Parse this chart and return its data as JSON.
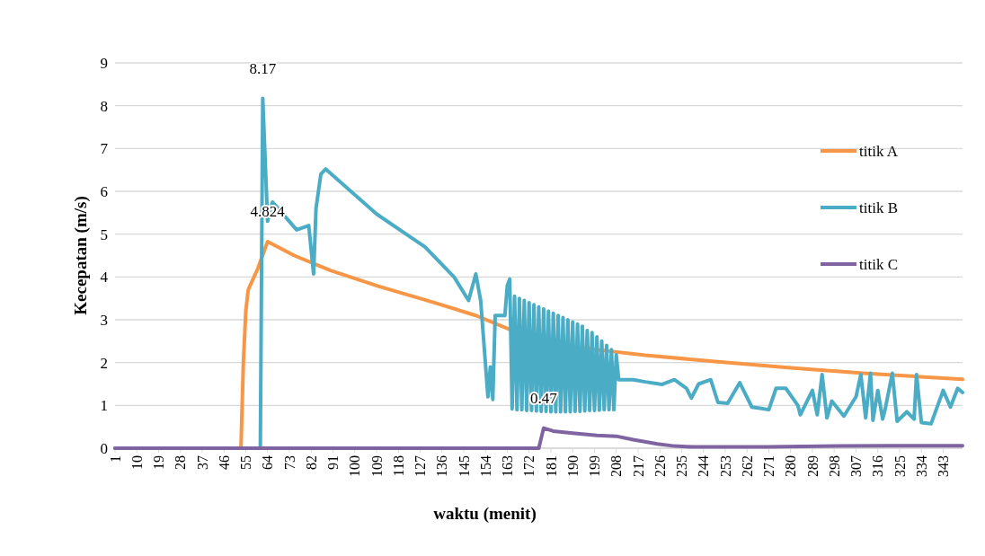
{
  "chart_data": {
    "type": "line",
    "xlabel": "waktu (menit)",
    "ylabel": "Kecepatan (m/s)",
    "xlim": [
      1,
      351
    ],
    "xticks": [
      1,
      10,
      19,
      28,
      37,
      46,
      55,
      64,
      73,
      82,
      91,
      100,
      109,
      118,
      127,
      136,
      145,
      154,
      163,
      172,
      181,
      190,
      199,
      208,
      217,
      226,
      235,
      244,
      253,
      262,
      271,
      280,
      289,
      298,
      307,
      316,
      325,
      334,
      343
    ],
    "ylim": [
      0,
      9
    ],
    "yticks": [
      0,
      1,
      2,
      3,
      4,
      5,
      6,
      7,
      8,
      9
    ],
    "grid": "y",
    "legend": "right",
    "marker": "none",
    "line_style": "solid",
    "series": [
      {
        "name": "titik A",
        "color": "#f79646",
        "x": [
          1,
          53,
          54,
          55,
          56,
          60,
          64,
          75,
          90,
          110,
          130,
          150,
          165,
          170,
          180,
          200,
          220,
          250,
          280,
          310,
          351
        ],
        "values": [
          0,
          0,
          2.0,
          3.2,
          3.7,
          4.2,
          4.824,
          4.5,
          4.15,
          3.78,
          3.45,
          3.1,
          2.75,
          2.6,
          2.45,
          2.3,
          2.17,
          2.02,
          1.88,
          1.75,
          1.61
        ],
        "value_labels": [
          null,
          null,
          null,
          null,
          null,
          null,
          "4.824",
          null,
          null,
          null,
          null,
          null,
          null,
          null,
          null,
          null,
          null,
          null,
          null,
          null,
          null
        ]
      },
      {
        "name": "titik B",
        "color": "#4bacc6",
        "x": [
          1,
          61,
          62,
          64,
          66,
          76,
          81,
          83,
          84,
          86,
          88,
          109,
          129,
          141,
          147,
          150,
          152,
          155,
          156,
          157,
          158,
          162,
          163,
          164,
          165,
          166,
          167,
          168,
          169,
          170,
          171,
          172,
          173,
          174,
          175,
          176,
          177,
          178,
          179,
          180,
          181,
          182,
          183,
          184,
          185,
          186,
          187,
          188,
          189,
          190,
          191,
          192,
          193,
          194,
          195,
          196,
          197,
          198,
          199,
          200,
          201,
          202,
          203,
          204,
          205,
          206,
          207,
          208,
          209,
          215,
          220,
          227,
          232,
          237,
          239,
          242,
          247,
          250,
          254,
          259,
          264,
          268,
          271,
          274,
          278,
          283,
          284,
          289,
          291,
          293,
          295,
          297,
          302,
          307,
          309,
          311,
          313,
          314,
          316,
          318,
          319,
          322,
          324,
          328,
          331,
          332,
          334,
          338,
          343,
          346,
          349,
          351
        ],
        "values": [
          0,
          0,
          8.17,
          5.3,
          5.75,
          5.1,
          5.2,
          4.07,
          5.6,
          6.4,
          6.52,
          5.47,
          4.7,
          4.0,
          3.45,
          4.07,
          3.45,
          1.2,
          1.9,
          1.14,
          3.1,
          3.1,
          3.8,
          3.95,
          0.92,
          3.55,
          0.9,
          3.5,
          0.9,
          3.45,
          0.88,
          3.4,
          0.88,
          3.35,
          0.87,
          3.3,
          0.86,
          3.25,
          0.86,
          3.2,
          0.85,
          3.15,
          0.85,
          3.1,
          0.85,
          3.05,
          0.85,
          3.0,
          0.85,
          2.95,
          0.86,
          2.9,
          0.86,
          2.85,
          0.87,
          2.75,
          0.88,
          2.7,
          0.88,
          2.6,
          0.89,
          2.5,
          0.9,
          2.4,
          0.9,
          2.3,
          0.9,
          2.18,
          1.6,
          1.6,
          1.55,
          1.49,
          1.6,
          1.4,
          1.17,
          1.5,
          1.6,
          1.07,
          1.05,
          1.53,
          0.96,
          0.93,
          0.9,
          1.4,
          1.4,
          1.0,
          0.78,
          1.35,
          0.78,
          1.72,
          0.71,
          1.1,
          0.75,
          1.2,
          1.72,
          0.71,
          1.75,
          0.65,
          1.35,
          0.68,
          0.9,
          1.75,
          0.63,
          0.85,
          0.68,
          1.72,
          0.6,
          0.57,
          1.35,
          0.96,
          1.4,
          1.3
        ],
        "value_labels": [
          null,
          null,
          "8.17",
          null,
          null,
          null,
          null,
          null,
          null,
          null,
          null,
          null,
          null,
          null,
          null,
          null,
          null,
          null,
          null,
          null,
          null,
          null,
          null,
          null,
          null,
          null,
          null,
          null,
          null,
          null,
          null,
          null,
          null,
          null,
          null,
          null,
          null,
          null,
          null,
          null,
          null,
          null,
          null,
          null,
          null,
          null,
          null,
          null,
          null,
          null,
          null,
          null,
          null,
          null,
          null,
          null,
          null,
          null,
          null,
          null,
          null,
          null,
          null,
          null,
          null,
          null,
          null,
          null,
          null,
          null,
          null,
          null,
          null,
          null,
          null,
          null,
          null,
          null,
          null,
          null,
          null,
          null,
          null,
          null,
          null,
          null,
          null,
          null,
          null,
          null,
          null,
          null,
          null,
          null,
          null,
          null,
          null,
          null,
          null,
          null,
          null,
          null,
          null,
          null,
          null,
          null,
          null,
          null,
          null,
          null,
          null,
          null
        ]
      },
      {
        "name": "titik C",
        "color": "#8064a2",
        "x": [
          1,
          176,
          178,
          182,
          190,
          200,
          208,
          215,
          225,
          232,
          240,
          270,
          300,
          320,
          351
        ],
        "values": [
          0,
          0,
          0.47,
          0.4,
          0.35,
          0.3,
          0.28,
          0.2,
          0.1,
          0.05,
          0.03,
          0.03,
          0.05,
          0.06,
          0.06
        ],
        "value_labels": [
          null,
          null,
          "0.47",
          null,
          null,
          null,
          null,
          null,
          null,
          null,
          null,
          null,
          null,
          null,
          null
        ]
      }
    ]
  }
}
